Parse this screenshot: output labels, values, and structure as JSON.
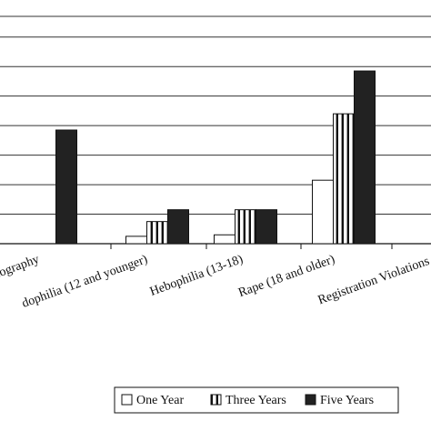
{
  "chart_data": {
    "type": "bar",
    "categories": [
      "nography",
      "dophilia (12 and younger)",
      "Hebophilia (13-18)",
      "Rape (18 and older)",
      "Registration Violations"
    ],
    "series": [
      {
        "name": "One Year",
        "values": [
          0,
          0.25,
          0.3,
          2.15,
          0
        ],
        "color": "#ffffff",
        "pattern": "none"
      },
      {
        "name": "Three Years",
        "values": [
          0,
          0.75,
          1.15,
          4.4,
          0
        ],
        "color": "#ffffff",
        "pattern": "vertical-stripes"
      },
      {
        "name": "Five Years",
        "values": [
          3.85,
          1.15,
          1.15,
          5.85,
          0
        ],
        "color": "#222222",
        "pattern": "none"
      }
    ],
    "ylim": [
      0,
      7.7
    ],
    "gridline_values": [
      1,
      2,
      3,
      4,
      5,
      6,
      7
    ],
    "grid": true,
    "legend_position": "bottom-right",
    "title": "",
    "xlabel": "",
    "ylabel": ""
  }
}
